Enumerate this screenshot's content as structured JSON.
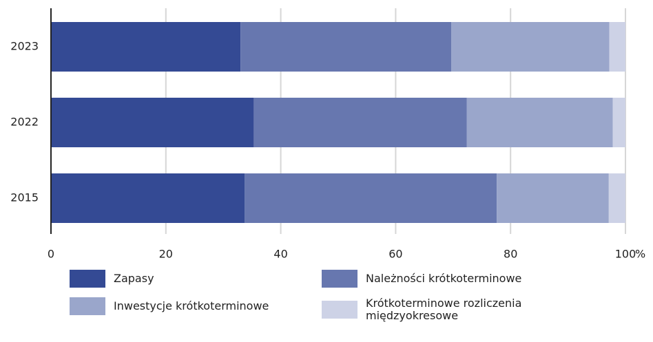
{
  "chart_data": {
    "type": "stacked_barh",
    "categories": [
      "2023",
      "2022",
      "2015"
    ],
    "series": [
      {
        "name": "Zapasy",
        "color": "#344a94",
        "values": [
          33.0,
          35.3,
          33.7
        ]
      },
      {
        "name": "Należności krótkoterminowe",
        "color": "#6777af",
        "values": [
          36.7,
          37.1,
          43.9
        ]
      },
      {
        "name": "Inwestycje krótkoterminowe",
        "color": "#9aa6cb",
        "values": [
          27.5,
          25.4,
          19.5
        ]
      },
      {
        "name": "Krótkoterminowe rozliczenia międzyokresowe",
        "color": "#cdd2e6",
        "values": [
          2.8,
          2.2,
          2.9
        ]
      }
    ],
    "xlim": [
      0,
      100
    ],
    "xticks": [
      0,
      20,
      40,
      60,
      80,
      100
    ],
    "x_unit": "%",
    "grid": true
  }
}
